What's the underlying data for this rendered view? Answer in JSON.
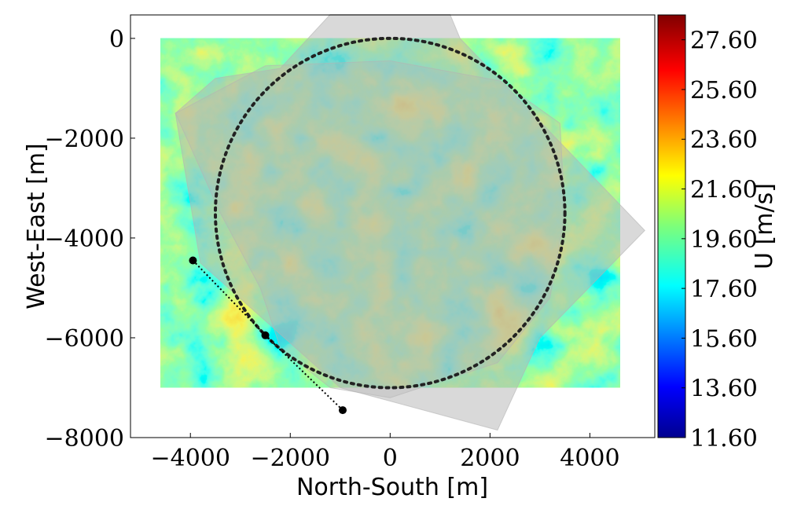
{
  "chart_data": {
    "type": "heatmap",
    "xlabel": "North-South [m]",
    "ylabel": "West-East [m]",
    "xlim": [
      -5200,
      5300
    ],
    "ylim": [
      -8000,
      470
    ],
    "x_ticks": [
      -4000,
      -2000,
      0,
      2000,
      4000
    ],
    "x_tick_labels": [
      "−4000",
      "−2000",
      "0",
      "2000",
      "4000"
    ],
    "y_ticks": [
      0,
      -2000,
      -4000,
      -6000,
      -8000
    ],
    "y_tick_labels": [
      "0",
      "−2000",
      "−4000",
      "−6000",
      "−8000"
    ],
    "field_extent": {
      "x": [
        -4600,
        4600
      ],
      "y": [
        -7000,
        0
      ]
    },
    "colorbar": {
      "label": "U [m/s]",
      "min": 11.6,
      "max": 28.6,
      "ticks": [
        11.6,
        13.6,
        15.6,
        17.6,
        19.6,
        21.6,
        23.6,
        25.6,
        27.6
      ],
      "tick_labels": [
        "11.60",
        "13.60",
        "15.60",
        "17.60",
        "19.60",
        "21.60",
        "23.60",
        "25.60",
        "27.60"
      ],
      "colormap": "jet"
    },
    "circle": {
      "center": [
        0,
        -3500
      ],
      "radius": 3500,
      "style": "dotted",
      "color": "#222222"
    },
    "path_points": [
      {
        "x": -3950,
        "y": -4450
      },
      {
        "x": -2500,
        "y": -5950
      },
      {
        "x": -950,
        "y": -7450
      }
    ],
    "shaded_sectors": [
      {
        "vertices": [
          [
            -1200,
            480
          ],
          [
            1200,
            480
          ],
          [
            1400,
            0
          ],
          [
            5100,
            -3850
          ],
          [
            3000,
            -6000
          ],
          [
            2150,
            -7850
          ],
          [
            -1000,
            -7000
          ],
          [
            -3800,
            -4500
          ],
          [
            -4300,
            -1500
          ],
          [
            -3500,
            -800
          ],
          [
            -2200,
            -600
          ]
        ]
      },
      {
        "vertices": [
          [
            -4300,
            -1500
          ],
          [
            -2500,
            -550
          ],
          [
            0,
            -450
          ],
          [
            2200,
            -850
          ],
          [
            3400,
            -1700
          ],
          [
            3500,
            -3500
          ],
          [
            3200,
            -5200
          ],
          [
            2150,
            -6500
          ],
          [
            0,
            -7200
          ],
          [
            -1200,
            -7000
          ],
          [
            -2200,
            -6200
          ],
          [
            -2600,
            -5000
          ],
          [
            -3400,
            -3500
          ]
        ]
      }
    ],
    "colors": {
      "shade": "#b4b4b4",
      "circle": "#222222",
      "marker": "#000000"
    }
  }
}
